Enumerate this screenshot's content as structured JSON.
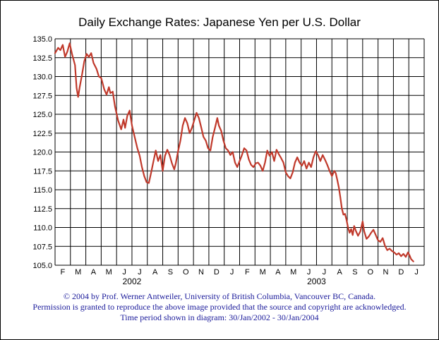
{
  "chart_data": {
    "type": "line",
    "title": "Daily Exchange Rates: Japanese Yen per U.S. Dollar",
    "xlabel": "",
    "ylabel": "",
    "ylim": [
      105.0,
      135.0
    ],
    "yticks": [
      "105.0",
      "107.5",
      "110.0",
      "112.5",
      "115.0",
      "117.5",
      "120.0",
      "122.5",
      "125.0",
      "127.5",
      "130.0",
      "132.5",
      "135.0"
    ],
    "month_labels": [
      "F",
      "M",
      "A",
      "M",
      "J",
      "J",
      "A",
      "S",
      "O",
      "N",
      "D",
      "J",
      "F",
      "M",
      "A",
      "M",
      "J",
      "J",
      "A",
      "S",
      "O",
      "N",
      "D",
      "J"
    ],
    "year_labels": [
      {
        "label": "2002",
        "month_index": 4.5
      },
      {
        "label": "2003",
        "month_index": 16.5
      }
    ],
    "grid": true,
    "line_color": "#c0392b",
    "series": [
      {
        "values": [
          [
            0.0,
            133.1
          ],
          [
            0.2,
            133.8
          ],
          [
            0.35,
            133.5
          ],
          [
            0.5,
            134.2
          ],
          [
            0.65,
            132.6
          ],
          [
            0.8,
            133.3
          ],
          [
            0.95,
            134.4
          ],
          [
            1.1,
            133.0
          ],
          [
            1.3,
            131.5
          ],
          [
            1.4,
            128.5
          ],
          [
            1.5,
            127.3
          ],
          [
            1.6,
            128.6
          ],
          [
            1.75,
            130.2
          ],
          [
            1.9,
            132.0
          ],
          [
            2.05,
            133.0
          ],
          [
            2.2,
            132.6
          ],
          [
            2.35,
            133.1
          ],
          [
            2.5,
            131.8
          ],
          [
            2.7,
            131.0
          ],
          [
            2.85,
            130.0
          ],
          [
            3.0,
            129.8
          ],
          [
            3.2,
            128.3
          ],
          [
            3.35,
            127.6
          ],
          [
            3.5,
            128.6
          ],
          [
            3.6,
            127.8
          ],
          [
            3.75,
            128.0
          ],
          [
            3.9,
            126.0
          ],
          [
            4.1,
            124.2
          ],
          [
            4.3,
            123.0
          ],
          [
            4.45,
            124.3
          ],
          [
            4.55,
            123.2
          ],
          [
            4.7,
            124.8
          ],
          [
            4.85,
            125.5
          ],
          [
            5.0,
            123.5
          ],
          [
            5.2,
            121.8
          ],
          [
            5.35,
            120.5
          ],
          [
            5.5,
            119.5
          ],
          [
            5.65,
            118.0
          ],
          [
            5.8,
            116.8
          ],
          [
            5.95,
            116.0
          ],
          [
            6.1,
            115.9
          ],
          [
            6.25,
            117.3
          ],
          [
            6.4,
            118.8
          ],
          [
            6.55,
            120.2
          ],
          [
            6.7,
            118.8
          ],
          [
            6.85,
            119.6
          ],
          [
            7.0,
            117.5
          ],
          [
            7.15,
            119.5
          ],
          [
            7.3,
            120.3
          ],
          [
            7.45,
            119.6
          ],
          [
            7.6,
            118.5
          ],
          [
            7.75,
            117.7
          ],
          [
            7.85,
            118.5
          ],
          [
            8.0,
            120.1
          ],
          [
            8.15,
            121.5
          ],
          [
            8.3,
            123.5
          ],
          [
            8.45,
            124.5
          ],
          [
            8.6,
            123.8
          ],
          [
            8.75,
            122.5
          ],
          [
            8.9,
            123.2
          ],
          [
            9.05,
            124.2
          ],
          [
            9.2,
            125.2
          ],
          [
            9.35,
            124.5
          ],
          [
            9.5,
            123.3
          ],
          [
            9.65,
            122.0
          ],
          [
            9.8,
            121.5
          ],
          [
            9.95,
            120.5
          ],
          [
            10.1,
            120.2
          ],
          [
            10.25,
            122.0
          ],
          [
            10.4,
            123.2
          ],
          [
            10.55,
            124.5
          ],
          [
            10.65,
            123.5
          ],
          [
            10.8,
            122.8
          ],
          [
            10.95,
            121.5
          ],
          [
            11.1,
            120.5
          ],
          [
            11.25,
            120.2
          ],
          [
            11.4,
            119.6
          ],
          [
            11.55,
            120.0
          ],
          [
            11.7,
            118.6
          ],
          [
            11.85,
            118.0
          ],
          [
            12.0,
            118.8
          ],
          [
            12.15,
            119.6
          ],
          [
            12.3,
            120.5
          ],
          [
            12.45,
            120.2
          ],
          [
            12.6,
            119.0
          ],
          [
            12.75,
            118.3
          ],
          [
            12.9,
            118.0
          ],
          [
            13.05,
            118.5
          ],
          [
            13.2,
            118.6
          ],
          [
            13.35,
            118.2
          ],
          [
            13.5,
            117.5
          ],
          [
            13.65,
            118.6
          ],
          [
            13.8,
            120.2
          ],
          [
            13.95,
            119.5
          ],
          [
            14.1,
            120.0
          ],
          [
            14.25,
            118.8
          ],
          [
            14.4,
            120.3
          ],
          [
            14.55,
            119.7
          ],
          [
            14.7,
            119.2
          ],
          [
            14.85,
            118.6
          ],
          [
            15.0,
            117.3
          ],
          [
            15.15,
            116.8
          ],
          [
            15.3,
            116.5
          ],
          [
            15.45,
            117.3
          ],
          [
            15.6,
            118.6
          ],
          [
            15.75,
            119.3
          ],
          [
            15.9,
            118.6
          ],
          [
            16.05,
            118.2
          ],
          [
            16.2,
            118.8
          ],
          [
            16.35,
            117.8
          ],
          [
            16.5,
            118.6
          ],
          [
            16.65,
            118.0
          ],
          [
            16.8,
            119.3
          ],
          [
            16.95,
            120.1
          ],
          [
            17.1,
            119.6
          ],
          [
            17.25,
            118.8
          ],
          [
            17.4,
            119.6
          ],
          [
            17.55,
            119.0
          ],
          [
            17.7,
            118.3
          ],
          [
            17.85,
            117.5
          ],
          [
            18.0,
            116.8
          ],
          [
            18.15,
            117.5
          ],
          [
            18.25,
            117.2
          ],
          [
            18.35,
            116.3
          ],
          [
            18.45,
            115.3
          ],
          [
            18.55,
            114.0
          ],
          [
            18.65,
            112.5
          ],
          [
            18.75,
            111.7
          ],
          [
            18.85,
            111.8
          ],
          [
            18.95,
            111.0
          ],
          [
            19.05,
            110.0
          ],
          [
            19.15,
            109.3
          ],
          [
            19.25,
            109.8
          ],
          [
            19.35,
            109.0
          ],
          [
            19.45,
            110.2
          ],
          [
            19.55,
            109.6
          ],
          [
            19.7,
            108.9
          ],
          [
            19.85,
            109.5
          ],
          [
            20.0,
            110.8
          ],
          [
            20.1,
            109.5
          ],
          [
            20.25,
            108.5
          ],
          [
            20.4,
            108.8
          ],
          [
            20.55,
            109.3
          ],
          [
            20.7,
            109.7
          ],
          [
            20.85,
            109.0
          ],
          [
            21.0,
            108.3
          ],
          [
            21.15,
            108.1
          ],
          [
            21.3,
            108.6
          ],
          [
            21.45,
            107.6
          ],
          [
            21.6,
            107.0
          ],
          [
            21.75,
            107.2
          ],
          [
            21.9,
            106.9
          ],
          [
            22.05,
            106.7
          ],
          [
            22.2,
            106.4
          ],
          [
            22.35,
            106.6
          ],
          [
            22.5,
            106.2
          ],
          [
            22.65,
            106.5
          ],
          [
            22.8,
            106.1
          ],
          [
            22.95,
            106.7
          ],
          [
            23.05,
            106.3
          ],
          [
            23.15,
            105.8
          ],
          [
            23.3,
            105.5
          ]
        ]
      }
    ]
  },
  "credits": {
    "copyright": "© 2004 by Prof. Werner Antweiler, University of British Columbia, Vancouver BC, Canada.",
    "permission": "Permission is granted to reproduce the above image provided that the source and copyright are acknowledged.",
    "period": "Time period shown in diagram: 30/Jan/2002 - 30/Jan/2004"
  }
}
